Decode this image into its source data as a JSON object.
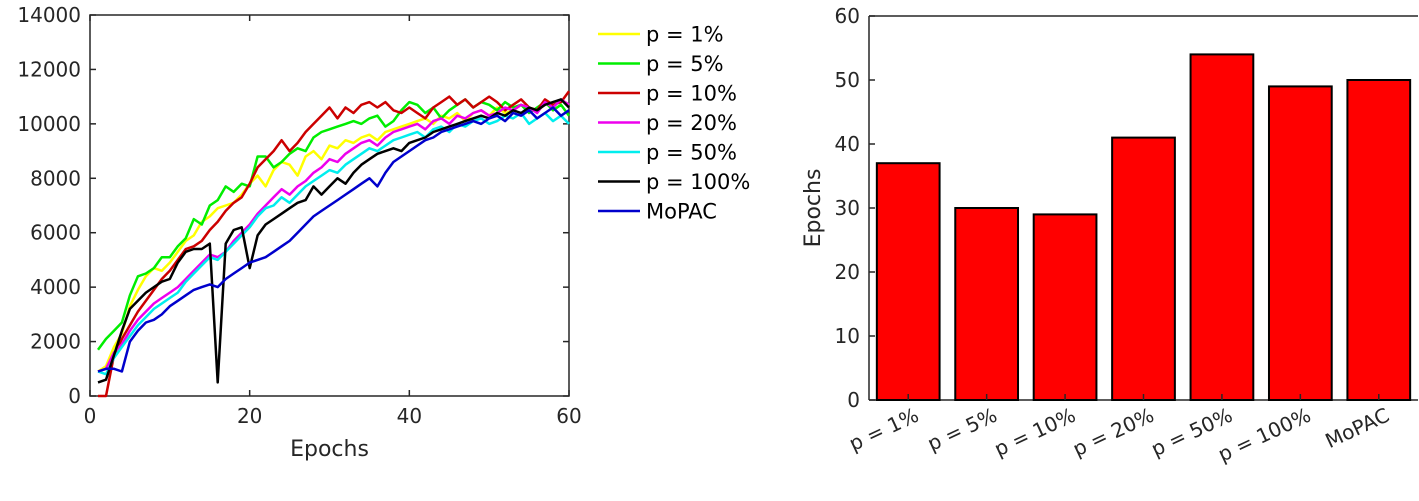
{
  "chart_data": [
    {
      "type": "line",
      "xlabel": "Epochs",
      "ylabel": "",
      "xlim": [
        0,
        60
      ],
      "ylim": [
        0,
        14000
      ],
      "xticks": [
        0,
        20,
        40,
        60
      ],
      "yticks": [
        0,
        2000,
        4000,
        6000,
        8000,
        10000,
        12000,
        14000
      ],
      "grid": false,
      "legend_position": "outside-right",
      "x": [
        1,
        2,
        3,
        4,
        5,
        6,
        7,
        8,
        9,
        10,
        11,
        12,
        13,
        14,
        15,
        16,
        17,
        18,
        19,
        20,
        21,
        22,
        23,
        24,
        25,
        26,
        27,
        28,
        29,
        30,
        31,
        32,
        33,
        34,
        35,
        36,
        37,
        38,
        39,
        40,
        41,
        42,
        43,
        44,
        45,
        46,
        47,
        48,
        49,
        50,
        51,
        52,
        53,
        54,
        55,
        56,
        57,
        58,
        59,
        60
      ],
      "series": [
        {
          "name": "p = 1%",
          "color": "#ffff00",
          "values": [
            900,
            1100,
            1800,
            2300,
            3300,
            3900,
            4400,
            4700,
            4600,
            4900,
            5300,
            5700,
            5900,
            6400,
            6600,
            6900,
            7000,
            7100,
            7400,
            7800,
            8100,
            7700,
            8300,
            8600,
            8500,
            8100,
            8800,
            9000,
            8700,
            9200,
            9100,
            9400,
            9300,
            9500,
            9600,
            9400,
            9700,
            9800,
            9900,
            10000,
            10100,
            10200,
            10000,
            10300,
            10200,
            10400,
            10100,
            10400,
            10500,
            10300,
            10600,
            10400,
            10500,
            10700,
            10600,
            10500,
            10800,
            10600,
            10900,
            10700
          ]
        },
        {
          "name": "p = 5%",
          "color": "#00ee00",
          "values": [
            1700,
            2100,
            2400,
            2700,
            3700,
            4400,
            4500,
            4700,
            5100,
            5100,
            5500,
            5800,
            6500,
            6300,
            7000,
            7200,
            7700,
            7500,
            7800,
            7700,
            8800,
            8800,
            8400,
            8600,
            8900,
            9100,
            9000,
            9500,
            9700,
            9800,
            9900,
            10000,
            10100,
            10000,
            10200,
            10300,
            9900,
            10100,
            10500,
            10800,
            10700,
            10400,
            10600,
            10200,
            10500,
            10700,
            10900,
            10600,
            10800,
            10700,
            10500,
            10800,
            10600,
            10700,
            10400,
            10600,
            10800,
            10500,
            10700,
            10300
          ]
        },
        {
          "name": "p = 10%",
          "color": "#cc0000",
          "values": [
            0,
            0,
            1500,
            2100,
            2600,
            3100,
            3500,
            3900,
            4300,
            4600,
            5000,
            5400,
            5500,
            5700,
            6100,
            6400,
            6800,
            7100,
            7300,
            7800,
            8400,
            8700,
            9000,
            9400,
            9000,
            9300,
            9700,
            10000,
            10300,
            10600,
            10200,
            10600,
            10400,
            10700,
            10800,
            10600,
            10800,
            10500,
            10400,
            10600,
            10400,
            10200,
            10600,
            10800,
            11000,
            10700,
            10900,
            10600,
            10800,
            11000,
            10800,
            10500,
            10700,
            10900,
            10600,
            10500,
            10900,
            10700,
            10800,
            11200
          ]
        },
        {
          "name": "p = 20%",
          "color": "#ee00ee",
          "values": [
            900,
            1000,
            1600,
            1900,
            2400,
            2800,
            3100,
            3400,
            3600,
            3800,
            4000,
            4300,
            4600,
            4900,
            5200,
            5100,
            5300,
            5700,
            6000,
            6300,
            6700,
            7000,
            7300,
            7600,
            7400,
            7700,
            7900,
            8200,
            8400,
            8700,
            8600,
            8900,
            9100,
            9300,
            9400,
            9200,
            9500,
            9700,
            9800,
            9900,
            10000,
            9800,
            10100,
            10200,
            10000,
            10300,
            10200,
            10400,
            10500,
            10300,
            10400,
            10600,
            10500,
            10700,
            10600,
            10400,
            10800,
            10600,
            10900,
            10700
          ]
        },
        {
          "name": "p = 50%",
          "color": "#00eeee",
          "values": [
            900,
            800,
            1400,
            1800,
            2200,
            2600,
            2900,
            3200,
            3400,
            3600,
            3800,
            4200,
            4500,
            4800,
            5100,
            5000,
            5300,
            5600,
            5900,
            6200,
            6600,
            6900,
            7000,
            7300,
            7100,
            7400,
            7700,
            7900,
            8100,
            8300,
            8200,
            8500,
            8700,
            8900,
            9100,
            9000,
            9200,
            9400,
            9500,
            9600,
            9700,
            9500,
            9800,
            9900,
            9700,
            10000,
            9900,
            10100,
            10200,
            10000,
            10100,
            10300,
            10200,
            10400,
            10000,
            10200,
            10400,
            10100,
            10300,
            10000
          ]
        },
        {
          "name": "p = 100%",
          "color": "#000000",
          "values": [
            500,
            600,
            1500,
            2400,
            3200,
            3500,
            3800,
            4000,
            4200,
            4300,
            4900,
            5300,
            5400,
            5400,
            5600,
            500,
            5600,
            6100,
            6200,
            4700,
            5900,
            6300,
            6500,
            6700,
            6900,
            7100,
            7200,
            7700,
            7400,
            7700,
            8000,
            7800,
            8200,
            8500,
            8700,
            8900,
            9000,
            9100,
            9000,
            9300,
            9400,
            9500,
            9700,
            9800,
            9900,
            10000,
            10100,
            10200,
            10300,
            10200,
            10400,
            10300,
            10500,
            10400,
            10600,
            10500,
            10700,
            10800,
            10900,
            10600
          ]
        },
        {
          "name": "MoPAC",
          "color": "#0000cc",
          "values": [
            900,
            1000,
            1000,
            900,
            2000,
            2400,
            2700,
            2800,
            3000,
            3300,
            3500,
            3700,
            3900,
            4000,
            4100,
            4000,
            4300,
            4500,
            4700,
            4900,
            5000,
            5100,
            5300,
            5500,
            5700,
            6000,
            6300,
            6600,
            6800,
            7000,
            7200,
            7400,
            7600,
            7800,
            8000,
            7700,
            8200,
            8600,
            8800,
            9000,
            9200,
            9400,
            9500,
            9700,
            9800,
            9900,
            10000,
            10100,
            10000,
            10200,
            10300,
            10100,
            10400,
            10300,
            10500,
            10200,
            10400,
            10600,
            10300,
            10500
          ]
        }
      ]
    },
    {
      "type": "bar",
      "categories": [
        "p = 1%",
        "p = 5%",
        "p = 10%",
        "p = 20%",
        "p = 50%",
        "p = 100%",
        "MoPAC"
      ],
      "values": [
        37,
        30,
        29,
        41,
        54,
        49,
        50
      ],
      "xlabel": "",
      "ylabel": "Epochs",
      "ylim": [
        0,
        60
      ],
      "yticks": [
        0,
        10,
        20,
        30,
        40,
        50,
        60
      ],
      "bar_color": "#ff0000",
      "grid": false
    }
  ]
}
